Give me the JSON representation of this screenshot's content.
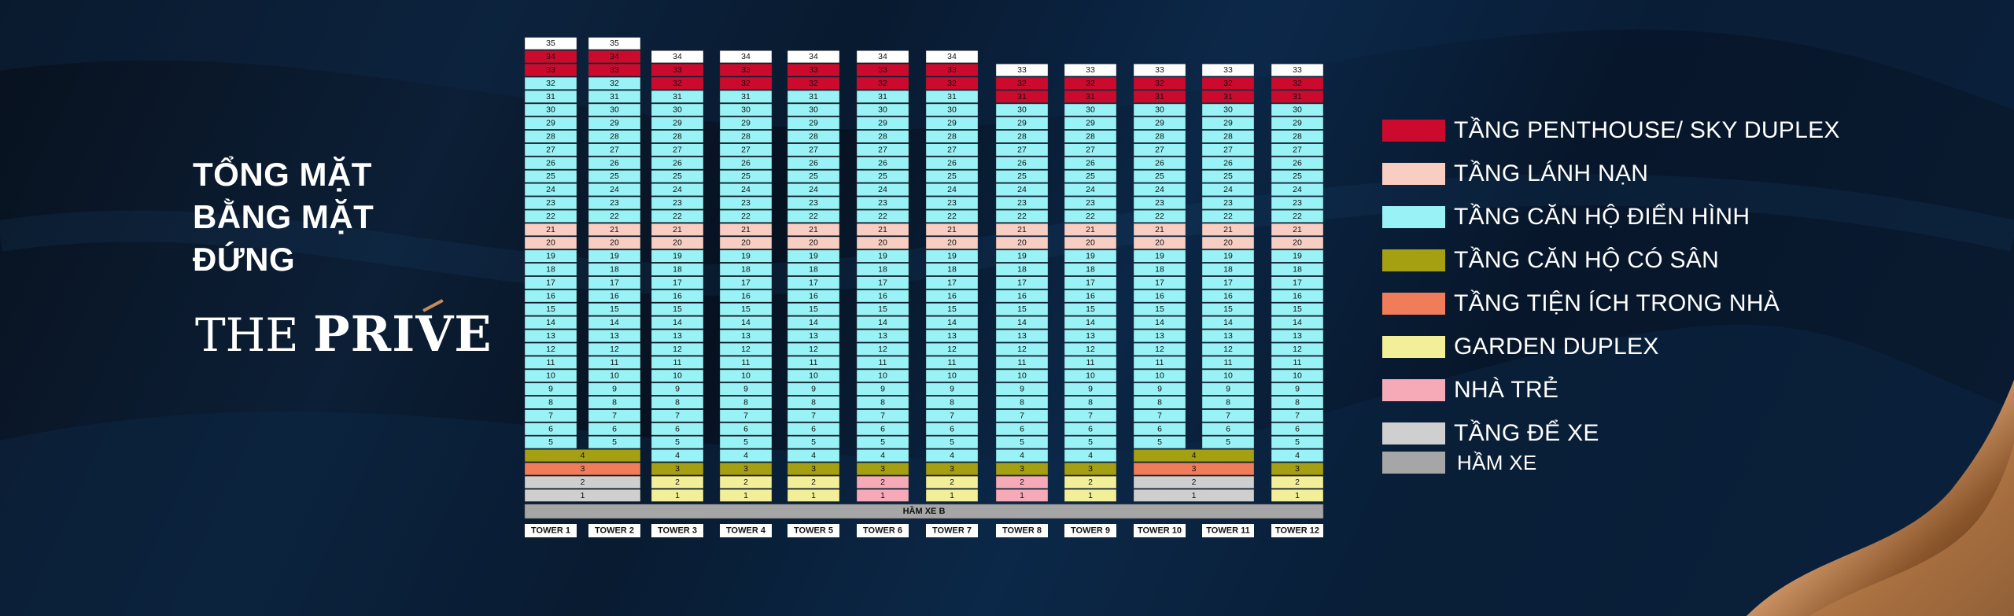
{
  "title_lines": [
    "TỔNG MẶT",
    "BẰNG MẶT",
    "ĐỨNG"
  ],
  "brand": {
    "part1": "THE",
    "part2": "PRIVE"
  },
  "colors": {
    "penthouse": "#cc0a2e",
    "refuge": "#f8cdc2",
    "typical": "#99f2f5",
    "garden_apt": "#a59f12",
    "amenity": "#f07c5a",
    "garden_duplex": "#f2ef98",
    "kids": "#f6aab8",
    "parking": "#d0cfcf",
    "basement": "#a6a6a6",
    "top": "#ffffff"
  },
  "chart_data": {
    "type": "table",
    "towers": [
      {
        "label": "TOWER 1",
        "top": 35,
        "penthouse": [
          34,
          33
        ],
        "floor4_merged": true,
        "floor3": "amenity",
        "floor2": "parking",
        "floor1": "parking",
        "merge_group": "A"
      },
      {
        "label": "TOWER 2",
        "top": 35,
        "penthouse": [
          34,
          33
        ],
        "floor4_merged": true,
        "floor3": "amenity",
        "floor2": "parking",
        "floor1": "parking",
        "merge_group": "A"
      },
      {
        "label": "TOWER 3",
        "top": 34,
        "penthouse": [
          33,
          32
        ],
        "floor4_merged": false,
        "floor3": "garden_apt",
        "floor2": "garden_duplex",
        "floor1": "garden_duplex"
      },
      {
        "label": "TOWER 4",
        "top": 34,
        "penthouse": [
          33,
          32
        ],
        "floor4_merged": false,
        "floor3": "garden_apt",
        "floor2": "garden_duplex",
        "floor1": "garden_duplex"
      },
      {
        "label": "TOWER 5",
        "top": 34,
        "penthouse": [
          33,
          32
        ],
        "floor4_merged": false,
        "floor3": "garden_apt",
        "floor2": "garden_duplex",
        "floor1": "garden_duplex"
      },
      {
        "label": "TOWER 6",
        "top": 34,
        "penthouse": [
          33,
          32
        ],
        "floor4_merged": false,
        "floor3": "garden_apt",
        "floor2": "kids",
        "floor1": "kids"
      },
      {
        "label": "TOWER 7",
        "top": 34,
        "penthouse": [
          33,
          32
        ],
        "floor4_merged": false,
        "floor3": "garden_apt",
        "floor2": "garden_duplex",
        "floor1": "garden_duplex"
      },
      {
        "label": "TOWER 8",
        "top": 33,
        "penthouse": [
          32,
          31
        ],
        "floor4_merged": false,
        "floor3": "garden_apt",
        "floor2": "kids",
        "floor1": "kids"
      },
      {
        "label": "TOWER 9",
        "top": 33,
        "penthouse": [
          32,
          31
        ],
        "floor4_merged": false,
        "floor3": "garden_apt",
        "floor2": "garden_duplex",
        "floor1": "garden_duplex"
      },
      {
        "label": "TOWER 10",
        "top": 33,
        "penthouse": [
          32,
          31
        ],
        "floor4_merged": true,
        "floor3": "amenity",
        "floor2": "parking",
        "floor1": "parking",
        "merge_group": "B"
      },
      {
        "label": "TOWER 11",
        "top": 33,
        "penthouse": [
          32,
          31
        ],
        "floor4_merged": true,
        "floor3": "amenity",
        "floor2": "parking",
        "floor1": "parking",
        "merge_group": "B"
      },
      {
        "label": "TOWER 12",
        "top": 33,
        "penthouse": [
          32,
          31
        ],
        "floor4_merged": false,
        "floor3": "garden_apt",
        "floor2": "garden_duplex",
        "floor1": "garden_duplex"
      }
    ],
    "refuge_floors": [
      20,
      21
    ],
    "basement_label": "HẦM XE B"
  },
  "legend": [
    {
      "key": "penthouse",
      "label": "TẦNG PENTHOUSE/ SKY DUPLEX"
    },
    {
      "key": "refuge",
      "label": "TẦNG LÁNH NẠN"
    },
    {
      "key": "typical",
      "label": "TẦNG CĂN HỘ ĐIỂN HÌNH"
    },
    {
      "key": "garden_apt",
      "label": "TẦNG CĂN HỘ CÓ SÂN"
    },
    {
      "key": "amenity",
      "label": "TẦNG TIỆN ÍCH TRONG NHÀ"
    },
    {
      "key": "garden_duplex",
      "label": "GARDEN DUPLEX"
    },
    {
      "key": "kids",
      "label": "NHÀ TRẺ"
    },
    {
      "key": "parking",
      "label": "TẦNG ĐỂ XE"
    },
    {
      "key": "basement",
      "label": "HẦM XE"
    }
  ]
}
